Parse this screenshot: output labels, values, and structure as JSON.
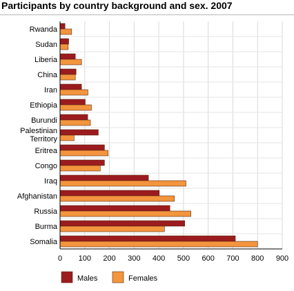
{
  "chart_data": {
    "type": "bar",
    "orientation": "horizontal",
    "title": "Participants by country background and sex. 2007",
    "categories": [
      "Rwanda",
      "Sudan",
      "Liberia",
      "China",
      "Iran",
      "Ethiopia",
      "Burundi",
      "Palestinian Territory",
      "Eritrea",
      "Congo",
      "Iraq",
      "Afghanistan",
      "Russia",
      "Burma",
      "Somalia"
    ],
    "series": [
      {
        "name": "Males",
        "color": "#9b1b1f",
        "values": [
          20,
          35,
          62,
          65,
          87,
          102,
          112,
          155,
          180,
          180,
          358,
          402,
          445,
          505,
          710
        ]
      },
      {
        "name": "Females",
        "color": "#f3953e",
        "values": [
          47,
          33,
          87,
          62,
          113,
          127,
          123,
          57,
          195,
          163,
          510,
          463,
          530,
          423,
          800
        ]
      }
    ],
    "xlim": [
      0,
      900
    ],
    "xticks": [
      0,
      100,
      200,
      300,
      400,
      500,
      600,
      700,
      800,
      900
    ],
    "grid": true,
    "legend_position": "bottom-left"
  }
}
